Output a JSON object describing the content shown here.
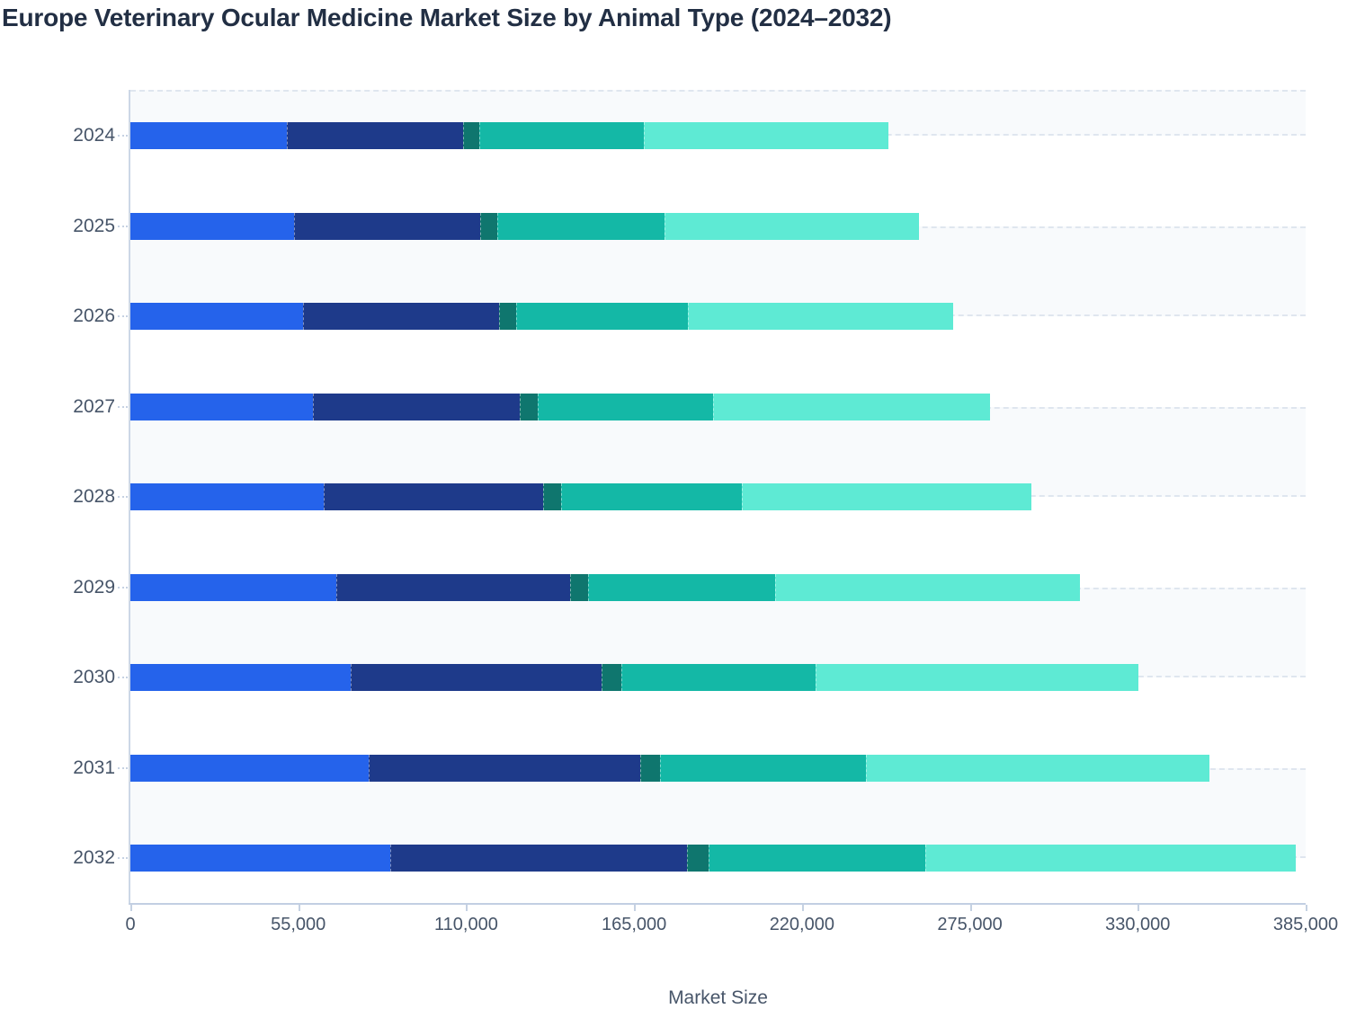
{
  "page_title": "Europe Veterinary Ocular Medicine Market Size by Animal Type (2024–2032)",
  "chart_data": {
    "type": "bar",
    "orientation": "horizontal",
    "stacked": true,
    "title": "Europe Veterinary Ocular Medicine Market Size by Animal Type (2024–2032)",
    "xlabel": "Market Size",
    "legend_position": "none",
    "categories": [
      "2024",
      "2025",
      "2026",
      "2027",
      "2028",
      "2029",
      "2030",
      "2031",
      "2032"
    ],
    "series": [
      {
        "name": "royal-blue-segment",
        "color": "#2563eb",
        "values": [
          51700,
          54200,
          57200,
          60400,
          63900,
          68000,
          72900,
          78900,
          85900
        ]
      },
      {
        "name": "navy-segment",
        "color": "#1e3a8a",
        "values": [
          58300,
          61600,
          64700,
          68400,
          72600,
          77400,
          83000,
          89800,
          98100
        ]
      },
      {
        "name": "dark-teal-segment",
        "color": "#0f766e",
        "values": [
          5400,
          5600,
          5700,
          5900,
          5900,
          6000,
          6500,
          6500,
          7300
        ]
      },
      {
        "name": "teal-segment",
        "color": "#14b8a6",
        "values": [
          54300,
          55300,
          56700,
          58100,
          59800,
          61900,
          64200,
          67900,
          71400
        ]
      },
      {
        "name": "aqua-segment",
        "color": "#5eead4",
        "values": [
          80800,
          84000,
          87700,
          91400,
          95800,
          100800,
          106700,
          113600,
          122700
        ]
      }
    ],
    "totals": [
      250500,
      260700,
      272000,
      284200,
      298000,
      314100,
      333300,
      356700,
      385400
    ],
    "xlim": [
      0,
      385000
    ],
    "x_tick_values": [
      0,
      55000,
      110000,
      165000,
      220000,
      275000,
      330000,
      385000
    ],
    "x_tick_labels": [
      "0",
      "55,000",
      "110,000",
      "165,000",
      "220,000",
      "275,000",
      "330,000",
      "385,000"
    ],
    "grid": {
      "row_stripes": true,
      "stripe_color": "#f8fafc",
      "dash_color": "#dfe6ef"
    }
  },
  "colors": {
    "title_text": "#222f44",
    "axis_text": "#475569",
    "axis_line": "#c2cfe2",
    "tick_line": "#c5d1e2",
    "stripe_fill": "#f8fafc",
    "stripe_dash": "#dfe6ef"
  }
}
